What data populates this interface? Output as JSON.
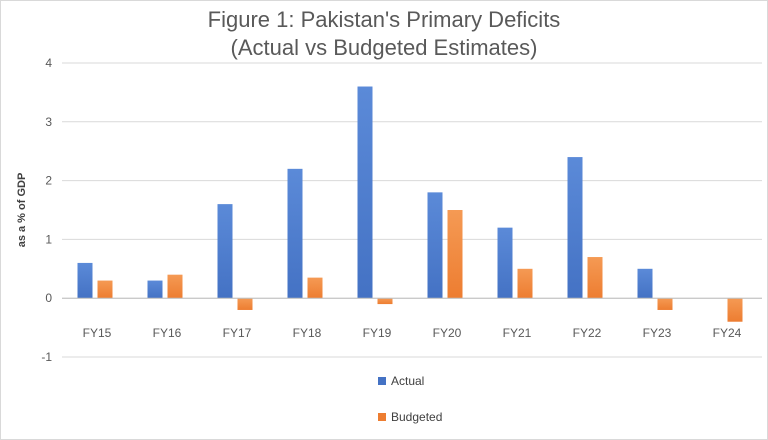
{
  "chart_data": {
    "type": "bar",
    "title_line1": "Figure 1: Pakistan's Primary Deficits",
    "title_line2": "(Actual vs Budgeted Estimates)",
    "xlabel": "",
    "ylabel": "as a % of GDP",
    "categories": [
      "FY15",
      "FY16",
      "FY17",
      "FY18",
      "FY19",
      "FY20",
      "FY21",
      "FY22",
      "FY23",
      "FY24"
    ],
    "series": [
      {
        "name": "Actual",
        "color": "#4472c4",
        "values": [
          0.6,
          0.3,
          1.6,
          2.2,
          3.6,
          1.8,
          1.2,
          2.4,
          0.5,
          null
        ]
      },
      {
        "name": "Budgeted",
        "color": "#ed7d31",
        "values": [
          0.3,
          0.4,
          -0.2,
          0.35,
          -0.1,
          1.5,
          0.5,
          0.7,
          -0.2,
          -0.4
        ]
      }
    ],
    "ylim": [
      -1,
      4
    ],
    "yticks": [
      -1,
      0,
      1,
      2,
      3,
      4
    ],
    "grid": true,
    "legend_position": "bottom"
  }
}
